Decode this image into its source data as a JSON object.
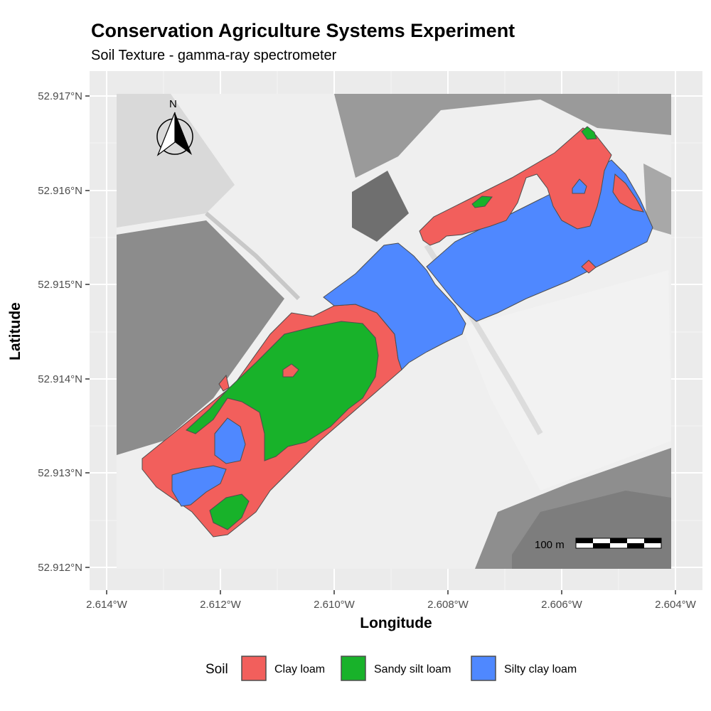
{
  "title": "Conservation Agriculture Systems Experiment",
  "subtitle": "Soil Texture - gamma-ray spectrometer",
  "x_axis": {
    "title": "Longitude",
    "ticks": [
      "2.614°W",
      "2.612°W",
      "2.610°W",
      "2.608°W",
      "2.606°W",
      "2.604°W"
    ]
  },
  "y_axis": {
    "title": "Latitude",
    "ticks": [
      "52.917°N",
      "52.916°N",
      "52.915°N",
      "52.914°N",
      "52.913°N",
      "52.912°N"
    ]
  },
  "north_arrow": {
    "label": "N"
  },
  "scale_bar": {
    "label": "100 m"
  },
  "legend": {
    "title": "Soil",
    "items": [
      {
        "label": "Clay loam",
        "color": "#f25f5c"
      },
      {
        "label": "Sandy silt loam",
        "color": "#18b22a"
      },
      {
        "label": "Silty clay loam",
        "color": "#4f88ff"
      }
    ]
  },
  "colors": {
    "panel_background": "#ebebeb",
    "grid": "#ffffff",
    "basemap": "grayscale aerial imagery"
  }
}
